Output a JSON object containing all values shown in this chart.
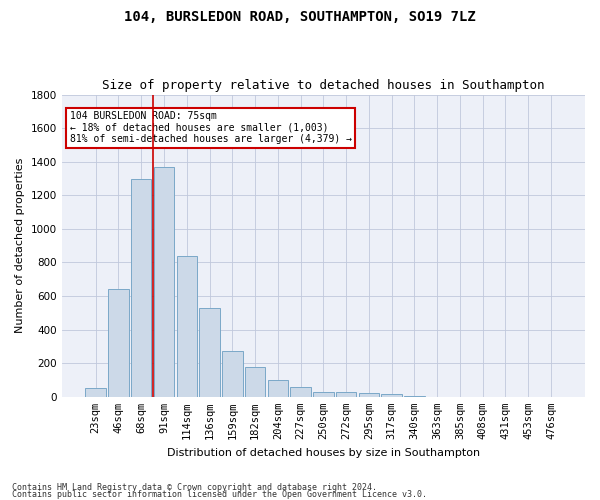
{
  "title": "104, BURSLEDON ROAD, SOUTHAMPTON, SO19 7LZ",
  "subtitle": "Size of property relative to detached houses in Southampton",
  "xlabel": "Distribution of detached houses by size in Southampton",
  "ylabel": "Number of detached properties",
  "categories": [
    "23sqm",
    "46sqm",
    "68sqm",
    "91sqm",
    "114sqm",
    "136sqm",
    "159sqm",
    "182sqm",
    "204sqm",
    "227sqm",
    "250sqm",
    "272sqm",
    "295sqm",
    "317sqm",
    "340sqm",
    "363sqm",
    "385sqm",
    "408sqm",
    "431sqm",
    "453sqm",
    "476sqm"
  ],
  "values": [
    50,
    640,
    1300,
    1370,
    840,
    530,
    270,
    175,
    100,
    60,
    30,
    30,
    20,
    15,
    5,
    0,
    0,
    0,
    0,
    0,
    0
  ],
  "bar_color": "#ccd9e8",
  "bar_edge_color": "#7aa8c8",
  "vline_x": 2.5,
  "vline_color": "#cc0000",
  "annotation_box_text": "104 BURSLEDON ROAD: 75sqm\n← 18% of detached houses are smaller (1,003)\n81% of semi-detached houses are larger (4,379) →",
  "annotation_box_color": "#cc0000",
  "annotation_box_bg": "#ffffff",
  "ylim": [
    0,
    1800
  ],
  "yticks": [
    0,
    200,
    400,
    600,
    800,
    1000,
    1200,
    1400,
    1600,
    1800
  ],
  "bg_color": "#edf0f8",
  "grid_color": "#c0c8dc",
  "footer_line1": "Contains HM Land Registry data © Crown copyright and database right 2024.",
  "footer_line2": "Contains public sector information licensed under the Open Government Licence v3.0.",
  "title_fontsize": 10,
  "subtitle_fontsize": 9,
  "xlabel_fontsize": 8,
  "ylabel_fontsize": 8,
  "tick_fontsize": 7.5,
  "annot_fontsize": 7
}
